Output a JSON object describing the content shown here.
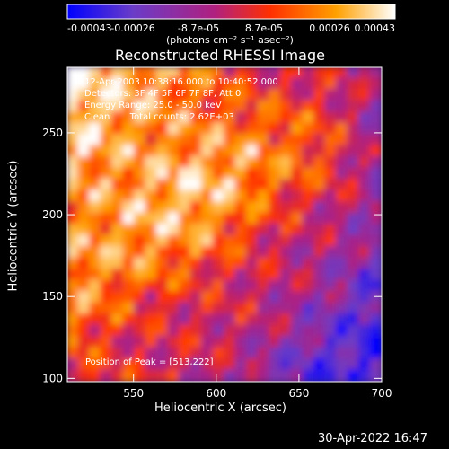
{
  "chart_data": {
    "type": "heatmap",
    "title": "Reconstructed RHESSI Image",
    "xlabel": "Heliocentric X (arcsec)",
    "ylabel": "Heliocentric Y (arcsec)",
    "xlim": [
      510,
      700
    ],
    "ylim": [
      98,
      290
    ],
    "x_ticks": [
      "550",
      "600",
      "650",
      "700"
    ],
    "y_ticks": [
      "100",
      "150",
      "200",
      "250"
    ],
    "colorbar": {
      "ticks": [
        "-0.00043",
        "-0.00026",
        "-8.7e-05",
        "8.7e-05",
        "0.00026",
        "0.00043"
      ],
      "unit_label": "(photons cm⁻² s⁻¹ asec⁻²)",
      "range": [
        -0.00043,
        0.00043
      ],
      "colors": [
        "#0000ff",
        "#6a3cc8",
        "#b0207f",
        "#ff3000",
        "#ffa000",
        "#ffffff"
      ]
    },
    "peak": [
      513,
      222
    ],
    "annotations": [
      "12-Apr-2003 10:38:16.000 to 10:40:52.000",
      "Detectors: 3F 4F 5F 6F 7F 8F, Att 0",
      "Energy Range: 25.0 - 50.0 keV",
      "Clean       Total counts: 2.62E+03"
    ],
    "peak_label": "Position of Peak = [513,222]",
    "timestamp": "30-Apr-2022 16:47"
  }
}
